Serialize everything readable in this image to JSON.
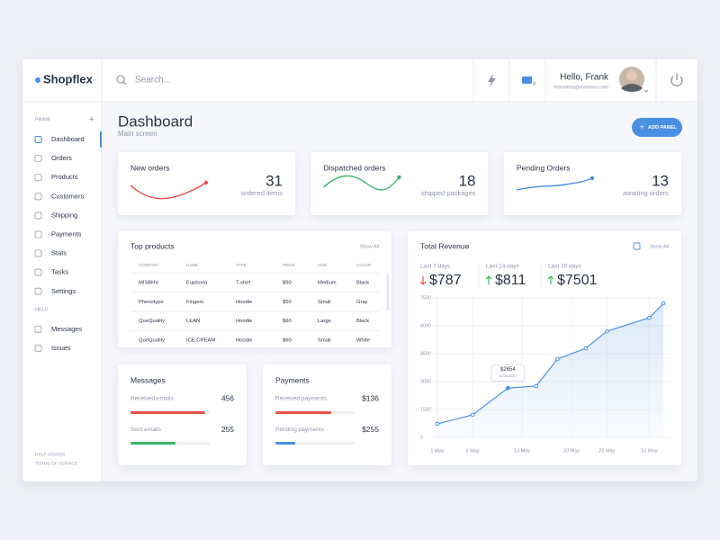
{
  "brand": "Shopflex",
  "search": {
    "placeholder": "Search..."
  },
  "user": {
    "greeting": "Hello, Frank",
    "email": "frmortens@mortens.com",
    "notifications": "3"
  },
  "sidebar": {
    "sections": [
      {
        "title": "PRIME",
        "items": [
          "Dashboard",
          "Orders",
          "Products",
          "Customers",
          "Shipping",
          "Payments",
          "Stats",
          "Tasks",
          "Settings"
        ]
      },
      {
        "title": "HELP",
        "items": [
          "Messages",
          "Issues"
        ]
      }
    ],
    "footer": [
      "HELP CENTER",
      "TERMS OF SERVICE"
    ]
  },
  "header": {
    "title": "Dashboard",
    "subtitle": "Main screen",
    "button": "ADD PANEL"
  },
  "stats": [
    {
      "title": "New orders",
      "value": 31,
      "unit": "ordered items",
      "color": "#e9524a"
    },
    {
      "title": "Dispatched orders",
      "value": 18,
      "unit": "shipped packages",
      "color": "#35b869"
    },
    {
      "title": "Pending Orders",
      "value": 13,
      "unit": "awaiting orders",
      "color": "#4a90e2"
    }
  ],
  "top_products": {
    "title": "Top products",
    "action": "Show All",
    "columns": [
      "COMPANY",
      "NAME",
      "TYPE",
      "PRICE",
      "SIZE",
      "COLOR"
    ],
    "rows": [
      [
        "MISBHV",
        "Euphoria",
        "T-shirt",
        "$90",
        "Medium",
        "Black"
      ],
      [
        "Phenotype",
        "Fingers",
        "Hoodie",
        "$50",
        "Small",
        "Gray"
      ],
      [
        "QueQuality",
        "LEAN",
        "Hoodie",
        "$60",
        "Large",
        "Black"
      ],
      [
        "QueQuality",
        "ICE CREAM",
        "Hoodie",
        "$60",
        "Small",
        "White"
      ]
    ]
  },
  "messages": {
    "title": "Messages",
    "rows": [
      {
        "label": "Received emails",
        "value": 456
      },
      {
        "label": "Sent emails",
        "value": 255
      }
    ]
  },
  "payments": {
    "title": "Payments",
    "rows": [
      {
        "label": "Received payments",
        "value": "$136"
      },
      {
        "label": "Pending payments",
        "value": "$255"
      }
    ]
  },
  "revenue": {
    "title": "Total Revenue",
    "action": "Show All",
    "periods": [
      {
        "label": "Last 7 days",
        "value": "$787",
        "trend": "down"
      },
      {
        "label": "Last 14 days",
        "value": "$811",
        "trend": "up"
      },
      {
        "label": "Last 30 days",
        "value": "$7501",
        "trend": "up"
      }
    ]
  },
  "chart_data": {
    "type": "line",
    "x": [
      1,
      6,
      11,
      15,
      18,
      22,
      25,
      31,
      33
    ],
    "values": [
      730,
      1210,
      2654,
      2760,
      4210,
      4790,
      5710,
      6430,
      7210
    ],
    "color": "#4a90e2",
    "xlim": [
      0,
      34
    ],
    "xticks": [
      {
        "value": 1,
        "label": "1 May"
      },
      {
        "value": 6,
        "label": "6 May"
      },
      {
        "value": 13,
        "label": "13 May"
      },
      {
        "value": 20,
        "label": "20 May"
      },
      {
        "value": 25,
        "label": "25 May"
      },
      {
        "value": 31,
        "label": "31 May"
      }
    ],
    "ylim": [
      0,
      7500
    ],
    "yticks": [
      0,
      1500,
      3000,
      4500,
      6000,
      7500
    ],
    "grid": true,
    "annotations": [
      {
        "x": 11,
        "label": "$2654",
        "date": "11/05/2017"
      }
    ]
  }
}
